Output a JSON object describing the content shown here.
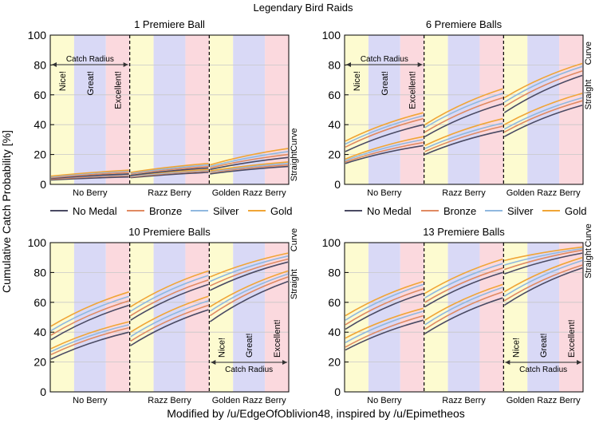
{
  "figure": {
    "title": "Legendary Bird Raids",
    "ylabel": "Cumulative Catch Probability [%]",
    "footer": "Modified by /u/EdgeOfOblivion48, inspired by /u/Epimetheos",
    "catch_radius_label": "Catch Radius",
    "throw_labels": [
      "Nice!",
      "Great!",
      "Excellent!"
    ],
    "curve_labels": [
      "Straight",
      "Curve"
    ],
    "group_labels": [
      "No Berry",
      "Razz Berry",
      "Golden Razz Berry"
    ],
    "legend": [
      "No Medal",
      "Bronze",
      "Silver",
      "Gold"
    ],
    "colors": {
      "series": [
        "#4a4a63",
        "#e08a62",
        "#90b8df",
        "#f0a536"
      ],
      "nice_band": "#fdfbd0",
      "great_band": "#d9d9f6",
      "excellent_band": "#fbd9de",
      "grid": "#c8c8c8",
      "divider": "#000000"
    }
  },
  "chart_data": [
    {
      "type": "line",
      "title": "1 Premiere Ball",
      "ylim": [
        0,
        100
      ],
      "yticks": [
        0,
        20,
        40,
        60,
        80,
        100
      ],
      "x": [
        0,
        1
      ],
      "groups": [
        "No Berry",
        "Razz Berry",
        "Golden Razz Berry"
      ],
      "series": [
        {
          "name": "No Medal",
          "straight": [
            [
              3,
              5
            ],
            [
              4.5,
              8
            ],
            [
              7,
              12
            ]
          ],
          "curve": [
            [
              4,
              7
            ],
            [
              6,
              11
            ],
            [
              10,
              18
            ]
          ]
        },
        {
          "name": "Bronze",
          "straight": [
            [
              3.5,
              6
            ],
            [
              5,
              9
            ],
            [
              8,
              13
            ]
          ],
          "curve": [
            [
              4.5,
              8
            ],
            [
              7,
              12
            ],
            [
              11,
              20
            ]
          ]
        },
        {
          "name": "Silver",
          "straight": [
            [
              4,
              6.5
            ],
            [
              5.5,
              9.5
            ],
            [
              8.5,
              14
            ]
          ],
          "curve": [
            [
              5,
              9
            ],
            [
              7.5,
              13
            ],
            [
              12,
              22
            ]
          ]
        },
        {
          "name": "Gold",
          "straight": [
            [
              4.5,
              7
            ],
            [
              6,
              10
            ],
            [
              9,
              15
            ]
          ],
          "curve": [
            [
              5.5,
              9.5
            ],
            [
              8,
              14
            ],
            [
              13,
              24
            ]
          ]
        }
      ],
      "annotations": {
        "throw_labels": true,
        "catch_radius": "top",
        "curve_labels_y": [
          2,
          22
        ]
      }
    },
    {
      "type": "line",
      "title": "6 Premiere Balls",
      "ylim": [
        0,
        100
      ],
      "yticks": [
        0,
        20,
        40,
        60,
        80,
        100
      ],
      "x": [
        0,
        1
      ],
      "groups": [
        "No Berry",
        "Razz Berry",
        "Golden Razz Berry"
      ],
      "series": [
        {
          "name": "No Medal",
          "straight": [
            [
              14,
              26
            ],
            [
              20,
              36
            ],
            [
              32,
              53
            ]
          ],
          "curve": [
            [
              22,
              40
            ],
            [
              32,
              54
            ],
            [
              48,
              73
            ]
          ]
        },
        {
          "name": "Bronze",
          "straight": [
            [
              15,
              28
            ],
            [
              22,
              39
            ],
            [
              35,
              56
            ]
          ],
          "curve": [
            [
              25,
              44
            ],
            [
              35,
              58
            ],
            [
              52,
              76
            ]
          ]
        },
        {
          "name": "Silver",
          "straight": [
            [
              16,
              30
            ],
            [
              24,
              41
            ],
            [
              37,
              58
            ]
          ],
          "curve": [
            [
              27,
              46
            ],
            [
              38,
              61
            ],
            [
              55,
              79
            ]
          ]
        },
        {
          "name": "Gold",
          "straight": [
            [
              17,
              32
            ],
            [
              26,
              44
            ],
            [
              40,
              61
            ]
          ],
          "curve": [
            [
              29,
              48
            ],
            [
              40,
              64
            ],
            [
              58,
              81
            ]
          ]
        }
      ],
      "annotations": {
        "throw_labels": true,
        "catch_radius": "top",
        "curve_labels_y": [
          50,
          80
        ]
      }
    },
    {
      "type": "line",
      "title": "10 Premiere Balls",
      "ylim": [
        0,
        100
      ],
      "yticks": [
        0,
        20,
        40,
        60,
        80,
        100
      ],
      "x": [
        0,
        1
      ],
      "groups": [
        "No Berry",
        "Razz Berry",
        "Golden Razz Berry"
      ],
      "series": [
        {
          "name": "No Medal",
          "straight": [
            [
              22,
              40
            ],
            [
              31,
              55
            ],
            [
              47,
              74
            ]
          ],
          "curve": [
            [
              35,
              58
            ],
            [
              48,
              72
            ],
            [
              68,
              87
            ]
          ]
        },
        {
          "name": "Bronze",
          "straight": [
            [
              25,
              43
            ],
            [
              34,
              58
            ],
            [
              51,
              77
            ]
          ],
          "curve": [
            [
              38,
              61
            ],
            [
              51,
              75
            ],
            [
              71,
              89
            ]
          ]
        },
        {
          "name": "Silver",
          "straight": [
            [
              27,
              45
            ],
            [
              37,
              61
            ],
            [
              54,
              79
            ]
          ],
          "curve": [
            [
              41,
              64
            ],
            [
              54,
              78
            ],
            [
              74,
              91
            ]
          ]
        },
        {
          "name": "Gold",
          "straight": [
            [
              29,
              47
            ],
            [
              40,
              64
            ],
            [
              57,
              81
            ]
          ],
          "curve": [
            [
              44,
              67
            ],
            [
              57,
              81
            ],
            [
              77,
              93
            ]
          ]
        }
      ],
      "annotations": {
        "throw_labels": true,
        "catch_radius": "bottom",
        "curve_labels_y": [
          62,
          94
        ]
      }
    },
    {
      "type": "line",
      "title": "13 Premiere Balls",
      "ylim": [
        0,
        100
      ],
      "yticks": [
        0,
        20,
        40,
        60,
        80,
        100
      ],
      "x": [
        0,
        1
      ],
      "groups": [
        "No Berry",
        "Razz Berry",
        "Golden Razz Berry"
      ],
      "series": [
        {
          "name": "No Medal",
          "straight": [
            [
              28,
              48
            ],
            [
              39,
              63
            ],
            [
              58,
              83
            ]
          ],
          "curve": [
            [
              42,
              66
            ],
            [
              57,
              80
            ],
            [
              79,
              93
            ]
          ]
        },
        {
          "name": "Bronze",
          "straight": [
            [
              30,
              51
            ],
            [
              42,
              67
            ],
            [
              61,
              85
            ]
          ],
          "curve": [
            [
              45,
              69
            ],
            [
              60,
              83
            ],
            [
              82,
              95
            ]
          ]
        },
        {
          "name": "Silver",
          "straight": [
            [
              33,
              54
            ],
            [
              45,
              70
            ],
            [
              64,
              88
            ]
          ],
          "curve": [
            [
              48,
              72
            ],
            [
              63,
              86
            ],
            [
              85,
              96
            ]
          ]
        },
        {
          "name": "Gold",
          "straight": [
            [
              36,
              56
            ],
            [
              48,
              72
            ],
            [
              67,
              90
            ]
          ],
          "curve": [
            [
              51,
              74
            ],
            [
              66,
              89
            ],
            [
              88,
              97
            ]
          ]
        }
      ],
      "annotations": {
        "throw_labels": true,
        "catch_radius": "bottom",
        "curve_labels_y": [
          76,
          97
        ]
      }
    }
  ]
}
